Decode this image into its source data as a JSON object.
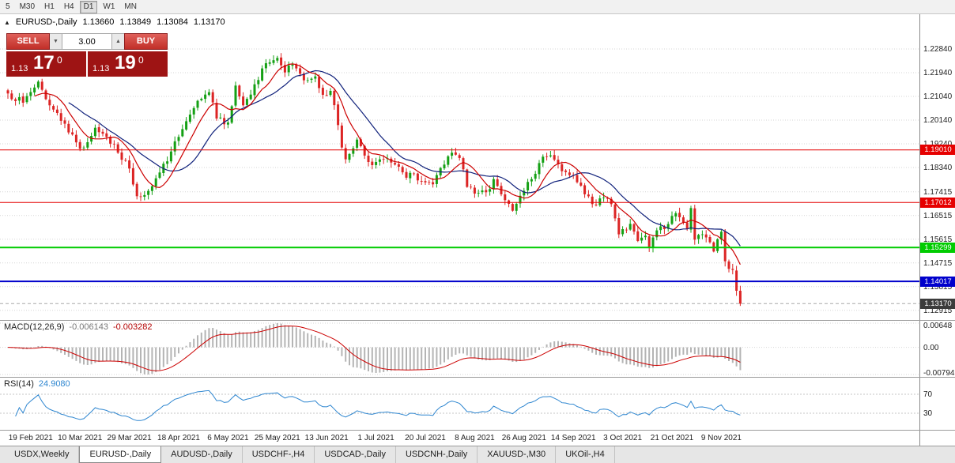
{
  "toolbar": {
    "items": [
      "5",
      "M30",
      "H1",
      "H4",
      "D1",
      "W1",
      "MN"
    ],
    "active_item": "D1"
  },
  "symbol_header": {
    "collapse_icon": "▲",
    "title": "EURUSD-,Daily",
    "open": "1.13660",
    "high": "1.13849",
    "low": "1.13084",
    "close": "1.13170"
  },
  "trade_panel": {
    "sell_label": "SELL",
    "buy_label": "BUY",
    "volume_value": "3.00",
    "dropdown_icon": "▼",
    "spinner_up_icon": "▲",
    "bid": {
      "big": "1.13",
      "pips": "17",
      "point": "0"
    },
    "ask": {
      "big": "1.13",
      "pips": "19",
      "point": "0"
    }
  },
  "price_axis_labels": [
    "1.22840",
    "1.21940",
    "1.21040",
    "1.20140",
    "1.19240",
    "1.18340",
    "1.17415",
    "1.16515",
    "1.15615",
    "1.14715",
    "1.13815",
    "1.12915"
  ],
  "levels": [
    {
      "price": 1.1901,
      "label": "1.19010",
      "color": "#e60000",
      "width": 1
    },
    {
      "price": 1.17012,
      "label": "1.17012",
      "color": "#e60000",
      "width": 1
    },
    {
      "price": 1.15299,
      "label": "1.15299",
      "color": "#00cc00",
      "width": 2
    },
    {
      "price": 1.14017,
      "label": "1.14017",
      "color": "#0000cc",
      "width": 2
    }
  ],
  "current_price_tag": {
    "price": 1.1317,
    "label": "1.13170",
    "bg": "#3c3c3c"
  },
  "indicators": {
    "macd": {
      "name": "MACD(12,26,9)",
      "value_main": "-0.006143",
      "value_signal": "-0.003282",
      "axis_labels": {
        "max": "0.00648",
        "zero": "0.00",
        "min": "-0.00794"
      }
    },
    "rsi": {
      "name": "RSI(14)",
      "value": "24.9080",
      "levels": [
        {
          "value": 70,
          "label": "70"
        },
        {
          "value": 30,
          "label": "30"
        }
      ]
    }
  },
  "date_axis_labels": [
    "19 Feb 2021",
    "10 Mar 2021",
    "29 Mar 2021",
    "18 Apr 2021",
    "6 May 2021",
    "25 May 2021",
    "13 Jun 2021",
    "1 Jul 2021",
    "20 Jul 2021",
    "8 Aug 2021",
    "26 Aug 2021",
    "14 Sep 2021",
    "3 Oct 2021",
    "21 Oct 2021",
    "9 Nov 2021"
  ],
  "bottom_tabs": [
    {
      "label": "USDX,Weekly",
      "active": false
    },
    {
      "label": "EURUSD-,Daily",
      "active": true
    },
    {
      "label": "AUDUSD-,Daily",
      "active": false
    },
    {
      "label": "USDCHF-,H4",
      "active": false
    },
    {
      "label": "USDCAD-,Daily",
      "active": false
    },
    {
      "label": "USDCNH-,Daily",
      "active": false
    },
    {
      "label": "XAUUSD-,M30",
      "active": false
    },
    {
      "label": "UKOil-,H4",
      "active": false
    }
  ],
  "chart_data": {
    "type": "candlestick",
    "symbol": "EURUSD-",
    "timeframe": "Daily",
    "bar_count": 194,
    "first_label_bar": 6,
    "bars_per_label": 13,
    "last_bar": {
      "open": 1.1366,
      "high": 1.13849,
      "low": 1.13084,
      "close": 1.1317
    },
    "close_keyframes": [
      [
        0,
        1.2115
      ],
      [
        4,
        1.208
      ],
      [
        8,
        1.216
      ],
      [
        11,
        1.207
      ],
      [
        15,
        1.2
      ],
      [
        19,
        1.1905
      ],
      [
        21,
        1.193
      ],
      [
        23,
        1.1985
      ],
      [
        26,
        1.195
      ],
      [
        29,
        1.189
      ],
      [
        32,
        1.183
      ],
      [
        34,
        1.1725
      ],
      [
        37,
        1.1745
      ],
      [
        40,
        1.1815
      ],
      [
        43,
        1.1895
      ],
      [
        45,
        1.195
      ],
      [
        48,
        1.2035
      ],
      [
        51,
        1.2095
      ],
      [
        53,
        1.212
      ],
      [
        55,
        1.202
      ],
      [
        58,
        1.2005
      ],
      [
        60,
        1.2145
      ],
      [
        62,
        1.207
      ],
      [
        65,
        1.215
      ],
      [
        68,
        1.223
      ],
      [
        71,
        1.225
      ],
      [
        73,
        1.2195
      ],
      [
        75,
        1.2225
      ],
      [
        78,
        1.2165
      ],
      [
        81,
        1.218
      ],
      [
        83,
        1.211
      ],
      [
        85,
        1.2125
      ],
      [
        87,
        1.1995
      ],
      [
        88,
        1.191
      ],
      [
        89,
        1.1865
      ],
      [
        92,
        1.194
      ],
      [
        95,
        1.1855
      ],
      [
        97,
        1.1855
      ],
      [
        99,
        1.1865
      ],
      [
        102,
        1.1845
      ],
      [
        105,
        1.1795
      ],
      [
        107,
        1.181
      ],
      [
        109,
        1.178
      ],
      [
        112,
        1.177
      ],
      [
        115,
        1.1845
      ],
      [
        117,
        1.189
      ],
      [
        119,
        1.187
      ],
      [
        121,
        1.176
      ],
      [
        123,
        1.1735
      ],
      [
        126,
        1.174
      ],
      [
        128,
        1.179
      ],
      [
        131,
        1.171
      ],
      [
        133,
        1.167
      ],
      [
        136,
        1.1745
      ],
      [
        139,
        1.181
      ],
      [
        141,
        1.1875
      ],
      [
        143,
        1.188
      ],
      [
        146,
        1.182
      ],
      [
        149,
        1.1805
      ],
      [
        151,
        1.1765
      ],
      [
        153,
        1.1725
      ],
      [
        155,
        1.169
      ],
      [
        157,
        1.172
      ],
      [
        159,
        1.1695
      ],
      [
        161,
        1.158
      ],
      [
        162,
        1.16
      ],
      [
        164,
        1.162
      ],
      [
        166,
        1.1555
      ],
      [
        168,
        1.1575
      ],
      [
        169,
        1.153
      ],
      [
        171,
        1.1595
      ],
      [
        173,
        1.16
      ],
      [
        175,
        1.165
      ],
      [
        177,
        1.1645
      ],
      [
        179,
        1.16
      ],
      [
        180,
        1.168
      ],
      [
        181,
        1.156
      ],
      [
        183,
        1.158
      ],
      [
        185,
        1.155
      ],
      [
        186,
        1.1515
      ],
      [
        188,
        1.159
      ],
      [
        189,
        1.1478
      ],
      [
        190,
        1.1449
      ],
      [
        191,
        1.1445
      ],
      [
        192,
        1.1366
      ],
      [
        193,
        1.1317
      ]
    ],
    "ma_fast_period": 8,
    "ma_slow_period": 17,
    "colors": {
      "up": "#14a014",
      "down": "#dc2424",
      "ma_fast": "#cc0000",
      "ma_slow": "#10217b",
      "macd_hist": "#b4b4b4",
      "macd_signal": "#cc0000",
      "rsi_line": "#2e86d0",
      "grid": "#d6d6d6"
    }
  }
}
